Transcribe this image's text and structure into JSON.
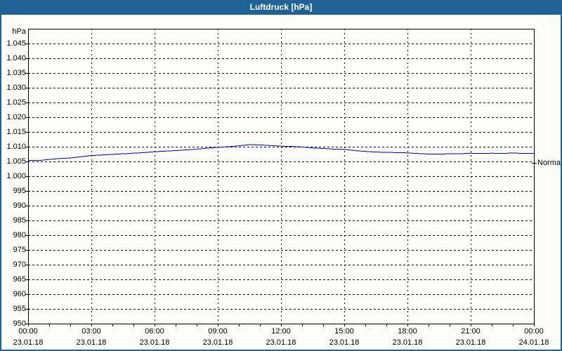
{
  "window": {
    "title": "Luftdruck [hPa]"
  },
  "colors": {
    "titlebar": "#1f6296",
    "window_border": "#1f6296",
    "background": "#fcfdf8",
    "grid": "#000000",
    "axis": "#000000",
    "line": "#0000b4",
    "title_text": "#ffffff",
    "label_text": "#000000"
  },
  "chart_data": {
    "type": "line",
    "title": "Luftdruck [hPa]",
    "unit_label": "hPa",
    "grid": true,
    "ylim": [
      950,
      1050
    ],
    "xlim_hours": [
      0,
      24
    ],
    "y_ticks": [
      {
        "value": 1045,
        "label": "1.045"
      },
      {
        "value": 1040,
        "label": "1.040"
      },
      {
        "value": 1035,
        "label": "1.035"
      },
      {
        "value": 1030,
        "label": "1.030"
      },
      {
        "value": 1025,
        "label": "1.025"
      },
      {
        "value": 1020,
        "label": "1.020"
      },
      {
        "value": 1015,
        "label": "1.015"
      },
      {
        "value": 1010,
        "label": "1.010"
      },
      {
        "value": 1005,
        "label": "1.005"
      },
      {
        "value": 1000,
        "label": "1.000"
      },
      {
        "value": 995,
        "label": "995"
      },
      {
        "value": 990,
        "label": "990"
      },
      {
        "value": 985,
        "label": "985"
      },
      {
        "value": 980,
        "label": "980"
      },
      {
        "value": 975,
        "label": "975"
      },
      {
        "value": 970,
        "label": "970"
      },
      {
        "value": 965,
        "label": "965"
      },
      {
        "value": 960,
        "label": "960"
      },
      {
        "value": 955,
        "label": "955"
      },
      {
        "value": 950,
        "label": "950"
      }
    ],
    "x_ticks": [
      {
        "hour": 0,
        "time": "00:00",
        "date": "23.01.18"
      },
      {
        "hour": 3,
        "time": "03:00",
        "date": "23.01.18"
      },
      {
        "hour": 6,
        "time": "06:00",
        "date": "23.01.18"
      },
      {
        "hour": 9,
        "time": "09:00",
        "date": "23.01.18"
      },
      {
        "hour": 12,
        "time": "12:00",
        "date": "23.01.18"
      },
      {
        "hour": 15,
        "time": "15:00",
        "date": "23.01.18"
      },
      {
        "hour": 18,
        "time": "18:00",
        "date": "23.01.18"
      },
      {
        "hour": 21,
        "time": "21:00",
        "date": "23.01.18"
      },
      {
        "hour": 24,
        "time": "00:00",
        "date": "24.01.18"
      }
    ],
    "minor_x_tick_every_hours": 1,
    "normal_marker": {
      "label": "Normal",
      "value": 1004.5
    },
    "series": [
      {
        "name": "Luftdruck",
        "color": "#0000b4",
        "points": [
          [
            0,
            1005.4
          ],
          [
            0.5,
            1005.3
          ],
          [
            1,
            1005.7
          ],
          [
            1.5,
            1006.0
          ],
          [
            2,
            1006.2
          ],
          [
            2.5,
            1006.6
          ],
          [
            3,
            1007.0
          ],
          [
            3.5,
            1007.2
          ],
          [
            4,
            1007.4
          ],
          [
            4.5,
            1007.6
          ],
          [
            5,
            1007.8
          ],
          [
            5.5,
            1008.0
          ],
          [
            6,
            1008.3
          ],
          [
            6.5,
            1008.5
          ],
          [
            7,
            1008.7
          ],
          [
            7.5,
            1008.9
          ],
          [
            8,
            1009.2
          ],
          [
            8.5,
            1009.5
          ],
          [
            9,
            1009.8
          ],
          [
            9.5,
            1010.0
          ],
          [
            10,
            1010.3
          ],
          [
            10.5,
            1010.7
          ],
          [
            11,
            1010.6
          ],
          [
            11.5,
            1010.4
          ],
          [
            12,
            1010.2
          ],
          [
            12.5,
            1010.1
          ],
          [
            13,
            1009.9
          ],
          [
            13.5,
            1009.6
          ],
          [
            14,
            1009.4
          ],
          [
            14.5,
            1009.2
          ],
          [
            15,
            1009.1
          ],
          [
            15.5,
            1008.7
          ],
          [
            16,
            1008.4
          ],
          [
            16.5,
            1008.2
          ],
          [
            17,
            1008.1
          ],
          [
            17.5,
            1008.0
          ],
          [
            18,
            1007.9
          ],
          [
            18.5,
            1007.7
          ],
          [
            19,
            1007.5
          ],
          [
            19.5,
            1007.5
          ],
          [
            20,
            1007.6
          ],
          [
            20.5,
            1007.6
          ],
          [
            21,
            1007.8
          ],
          [
            21.5,
            1007.7
          ],
          [
            22,
            1007.8
          ],
          [
            22.5,
            1007.7
          ],
          [
            23,
            1007.9
          ],
          [
            23.5,
            1007.7
          ],
          [
            24,
            1007.7
          ]
        ]
      }
    ]
  }
}
